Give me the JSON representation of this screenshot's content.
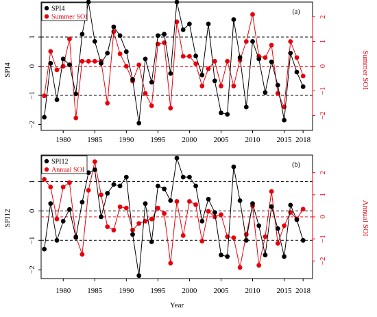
{
  "colors": {
    "black_series": "#000000",
    "red_series": "#e8000b"
  },
  "x_axis_label": "Year",
  "chart_data": [
    {
      "type": "line",
      "panel_label": "(a)",
      "ylabel_left": "SPI4",
      "ylabel_right": "Summer SOI",
      "xlim": [
        1976.5,
        2019.5
      ],
      "ylim_left": [
        -2.2,
        2.2
      ],
      "ylim_right": [
        -2.6,
        2.6
      ],
      "x_ticks": [
        1980,
        1985,
        1990,
        1995,
        2000,
        2005,
        2010,
        2015,
        2018
      ],
      "left_ticks": [
        -2,
        -1,
        0,
        1
      ],
      "right_ticks": [
        -2,
        -1,
        0,
        1,
        2
      ],
      "ref_lines_left": [
        -1,
        0,
        1
      ],
      "ref_line_right": 0,
      "legend_position": "top-left",
      "series": [
        {
          "name": "SPI4",
          "axis": "left",
          "color": "#000000",
          "x": [
            1977,
            1978,
            1979,
            1980,
            1981,
            1982,
            1983,
            1984,
            1985,
            1986,
            1987,
            1988,
            1989,
            1990,
            1991,
            1992,
            1993,
            1994,
            1995,
            1996,
            1997,
            1998,
            1999,
            2000,
            2001,
            2002,
            2003,
            2004,
            2005,
            2006,
            2007,
            2008,
            2009,
            2010,
            2011,
            2012,
            2013,
            2014,
            2015,
            2016,
            2017,
            2018
          ],
          "values": [
            -1.75,
            0.1,
            -1.15,
            0.25,
            0.05,
            -0.95,
            1.1,
            2.2,
            0.85,
            0.1,
            0.45,
            1.35,
            1.05,
            0.5,
            -0.45,
            -1.95,
            0.25,
            -0.55,
            1.05,
            1.1,
            -0.25,
            2.2,
            1.25,
            1.45,
            0.35,
            -0.3,
            1.45,
            -0.5,
            -1.6,
            -1.65,
            1.6,
            0.3,
            -1.4,
            0.85,
            0.25,
            -0.9,
            0.15,
            -0.65,
            -1.85,
            0.45,
            -0.2,
            -0.7
          ]
        },
        {
          "name": "Summer SOI",
          "axis": "right",
          "color": "#e8000b",
          "x": [
            1977,
            1978,
            1979,
            1980,
            1981,
            1982,
            1983,
            1984,
            1985,
            1986,
            1987,
            1988,
            1989,
            1990,
            1991,
            1992,
            1993,
            1994,
            1995,
            1996,
            1997,
            1998,
            1999,
            2000,
            2001,
            2002,
            2003,
            2004,
            2005,
            2006,
            2007,
            2008,
            2009,
            2010,
            2011,
            2012,
            2013,
            2014,
            2015,
            2016,
            2017,
            2018
          ],
          "values": [
            -1.2,
            0.6,
            -0.15,
            0.0,
            1.1,
            -2.1,
            0.2,
            0.2,
            0.2,
            0.2,
            -1.5,
            1.4,
            0.5,
            0.0,
            -0.6,
            0.05,
            -1.1,
            -1.6,
            0.9,
            0.95,
            -1.7,
            1.8,
            0.4,
            0.4,
            0.1,
            -0.8,
            -0.1,
            0.2,
            -0.8,
            0.2,
            -0.8,
            0.25,
            1.0,
            2.1,
            0.4,
            0.35,
            0.85,
            -1.1,
            -1.65,
            1.0,
            0.35,
            -0.4
          ]
        }
      ]
    },
    {
      "type": "line",
      "panel_label": "(b)",
      "ylabel_left": "SPI12",
      "ylabel_right": "Annual SOI",
      "xlim": [
        1976.5,
        2019.5
      ],
      "ylim_left": [
        -2.3,
        1.9
      ],
      "ylim_right": [
        -2.8,
        2.8
      ],
      "x_ticks": [
        1980,
        1985,
        1990,
        1995,
        2000,
        2005,
        2010,
        2015,
        2018
      ],
      "left_ticks": [
        -2,
        -1,
        0,
        1
      ],
      "right_ticks": [
        -2,
        -1,
        0,
        1,
        2
      ],
      "ref_lines_left": [
        -1,
        0,
        1
      ],
      "ref_line_right": 0,
      "legend_position": "top-left",
      "series": [
        {
          "name": "SPI12",
          "axis": "left",
          "color": "#000000",
          "x": [
            1977,
            1978,
            1979,
            1980,
            1981,
            1982,
            1983,
            1984,
            1985,
            1986,
            1987,
            1988,
            1989,
            1990,
            1991,
            1992,
            1993,
            1994,
            1995,
            1996,
            1997,
            1998,
            1999,
            2000,
            2001,
            2002,
            2003,
            2004,
            2005,
            2006,
            2007,
            2008,
            2009,
            2010,
            2011,
            2012,
            2013,
            2014,
            2015,
            2016,
            2017,
            2018
          ],
          "values": [
            -1.3,
            0.25,
            -1.0,
            -0.35,
            0.05,
            -0.9,
            0.3,
            1.3,
            1.4,
            -0.2,
            0.6,
            0.9,
            0.85,
            1.15,
            -0.8,
            -2.2,
            0.25,
            -1.05,
            0.85,
            0.75,
            0.35,
            1.8,
            1.15,
            1.15,
            0.85,
            -0.35,
            0.4,
            -0.05,
            -1.5,
            -1.55,
            1.5,
            0.35,
            -1.0,
            0.25,
            -0.5,
            -1.5,
            0.15,
            -0.6,
            -1.55,
            0.2,
            -0.3,
            -1.0
          ]
        },
        {
          "name": "Annual SOI",
          "axis": "right",
          "color": "#e8000b",
          "x": [
            1977,
            1978,
            1979,
            1980,
            1981,
            1982,
            1983,
            1984,
            1985,
            1986,
            1987,
            1988,
            1989,
            1990,
            1991,
            1992,
            1993,
            1994,
            1995,
            1996,
            1997,
            1998,
            1999,
            2000,
            2001,
            2002,
            2003,
            2004,
            2005,
            2006,
            2007,
            2008,
            2009,
            2010,
            2011,
            2012,
            2013,
            2014,
            2015,
            2016,
            2017,
            2018
          ],
          "values": [
            1.7,
            1.35,
            -0.1,
            1.35,
            1.55,
            -0.9,
            -1.7,
            1.2,
            2.5,
            1.0,
            -0.45,
            -0.6,
            0.45,
            0.4,
            -0.6,
            -0.3,
            -0.2,
            -0.1,
            0.4,
            0.15,
            -2.1,
            0.7,
            -0.85,
            0.7,
            0.55,
            -1.1,
            0.25,
            0.0,
            0.1,
            -0.9,
            -0.95,
            -2.3,
            -0.8,
            0.5,
            -2.2,
            -0.9,
            1.15,
            -1.2,
            -0.4,
            0.2,
            -0.1,
            0.35
          ]
        }
      ]
    }
  ]
}
